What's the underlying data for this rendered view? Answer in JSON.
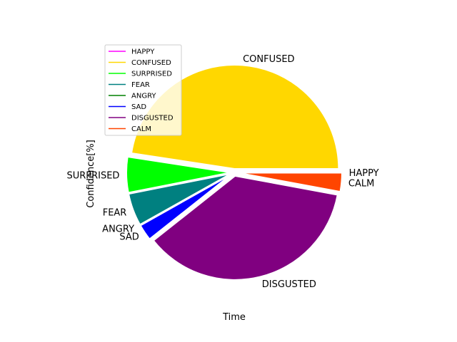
{
  "chart_data": {
    "type": "pie",
    "xlabel": "Time",
    "ylabel": "Confidence[%]",
    "legend_position": "upper-left",
    "slices": [
      {
        "label": "HAPPY",
        "value": 0.02,
        "color": "#ff00ff"
      },
      {
        "label": "CONFUSED",
        "value": 47.3,
        "color": "#ffd700"
      },
      {
        "label": "SURPRISED",
        "value": 5.5,
        "color": "#00ff00"
      },
      {
        "label": "FEAR",
        "value": 5.0,
        "color": "#008080"
      },
      {
        "label": "ANGRY",
        "value": 0.02,
        "color": "#008000"
      },
      {
        "label": "SAD",
        "value": 2.5,
        "color": "#0000ff"
      },
      {
        "label": "DISGUSTED",
        "value": 36.2,
        "color": "#800080"
      },
      {
        "label": "CALM",
        "value": 2.9,
        "color": "#ff4500"
      }
    ]
  }
}
